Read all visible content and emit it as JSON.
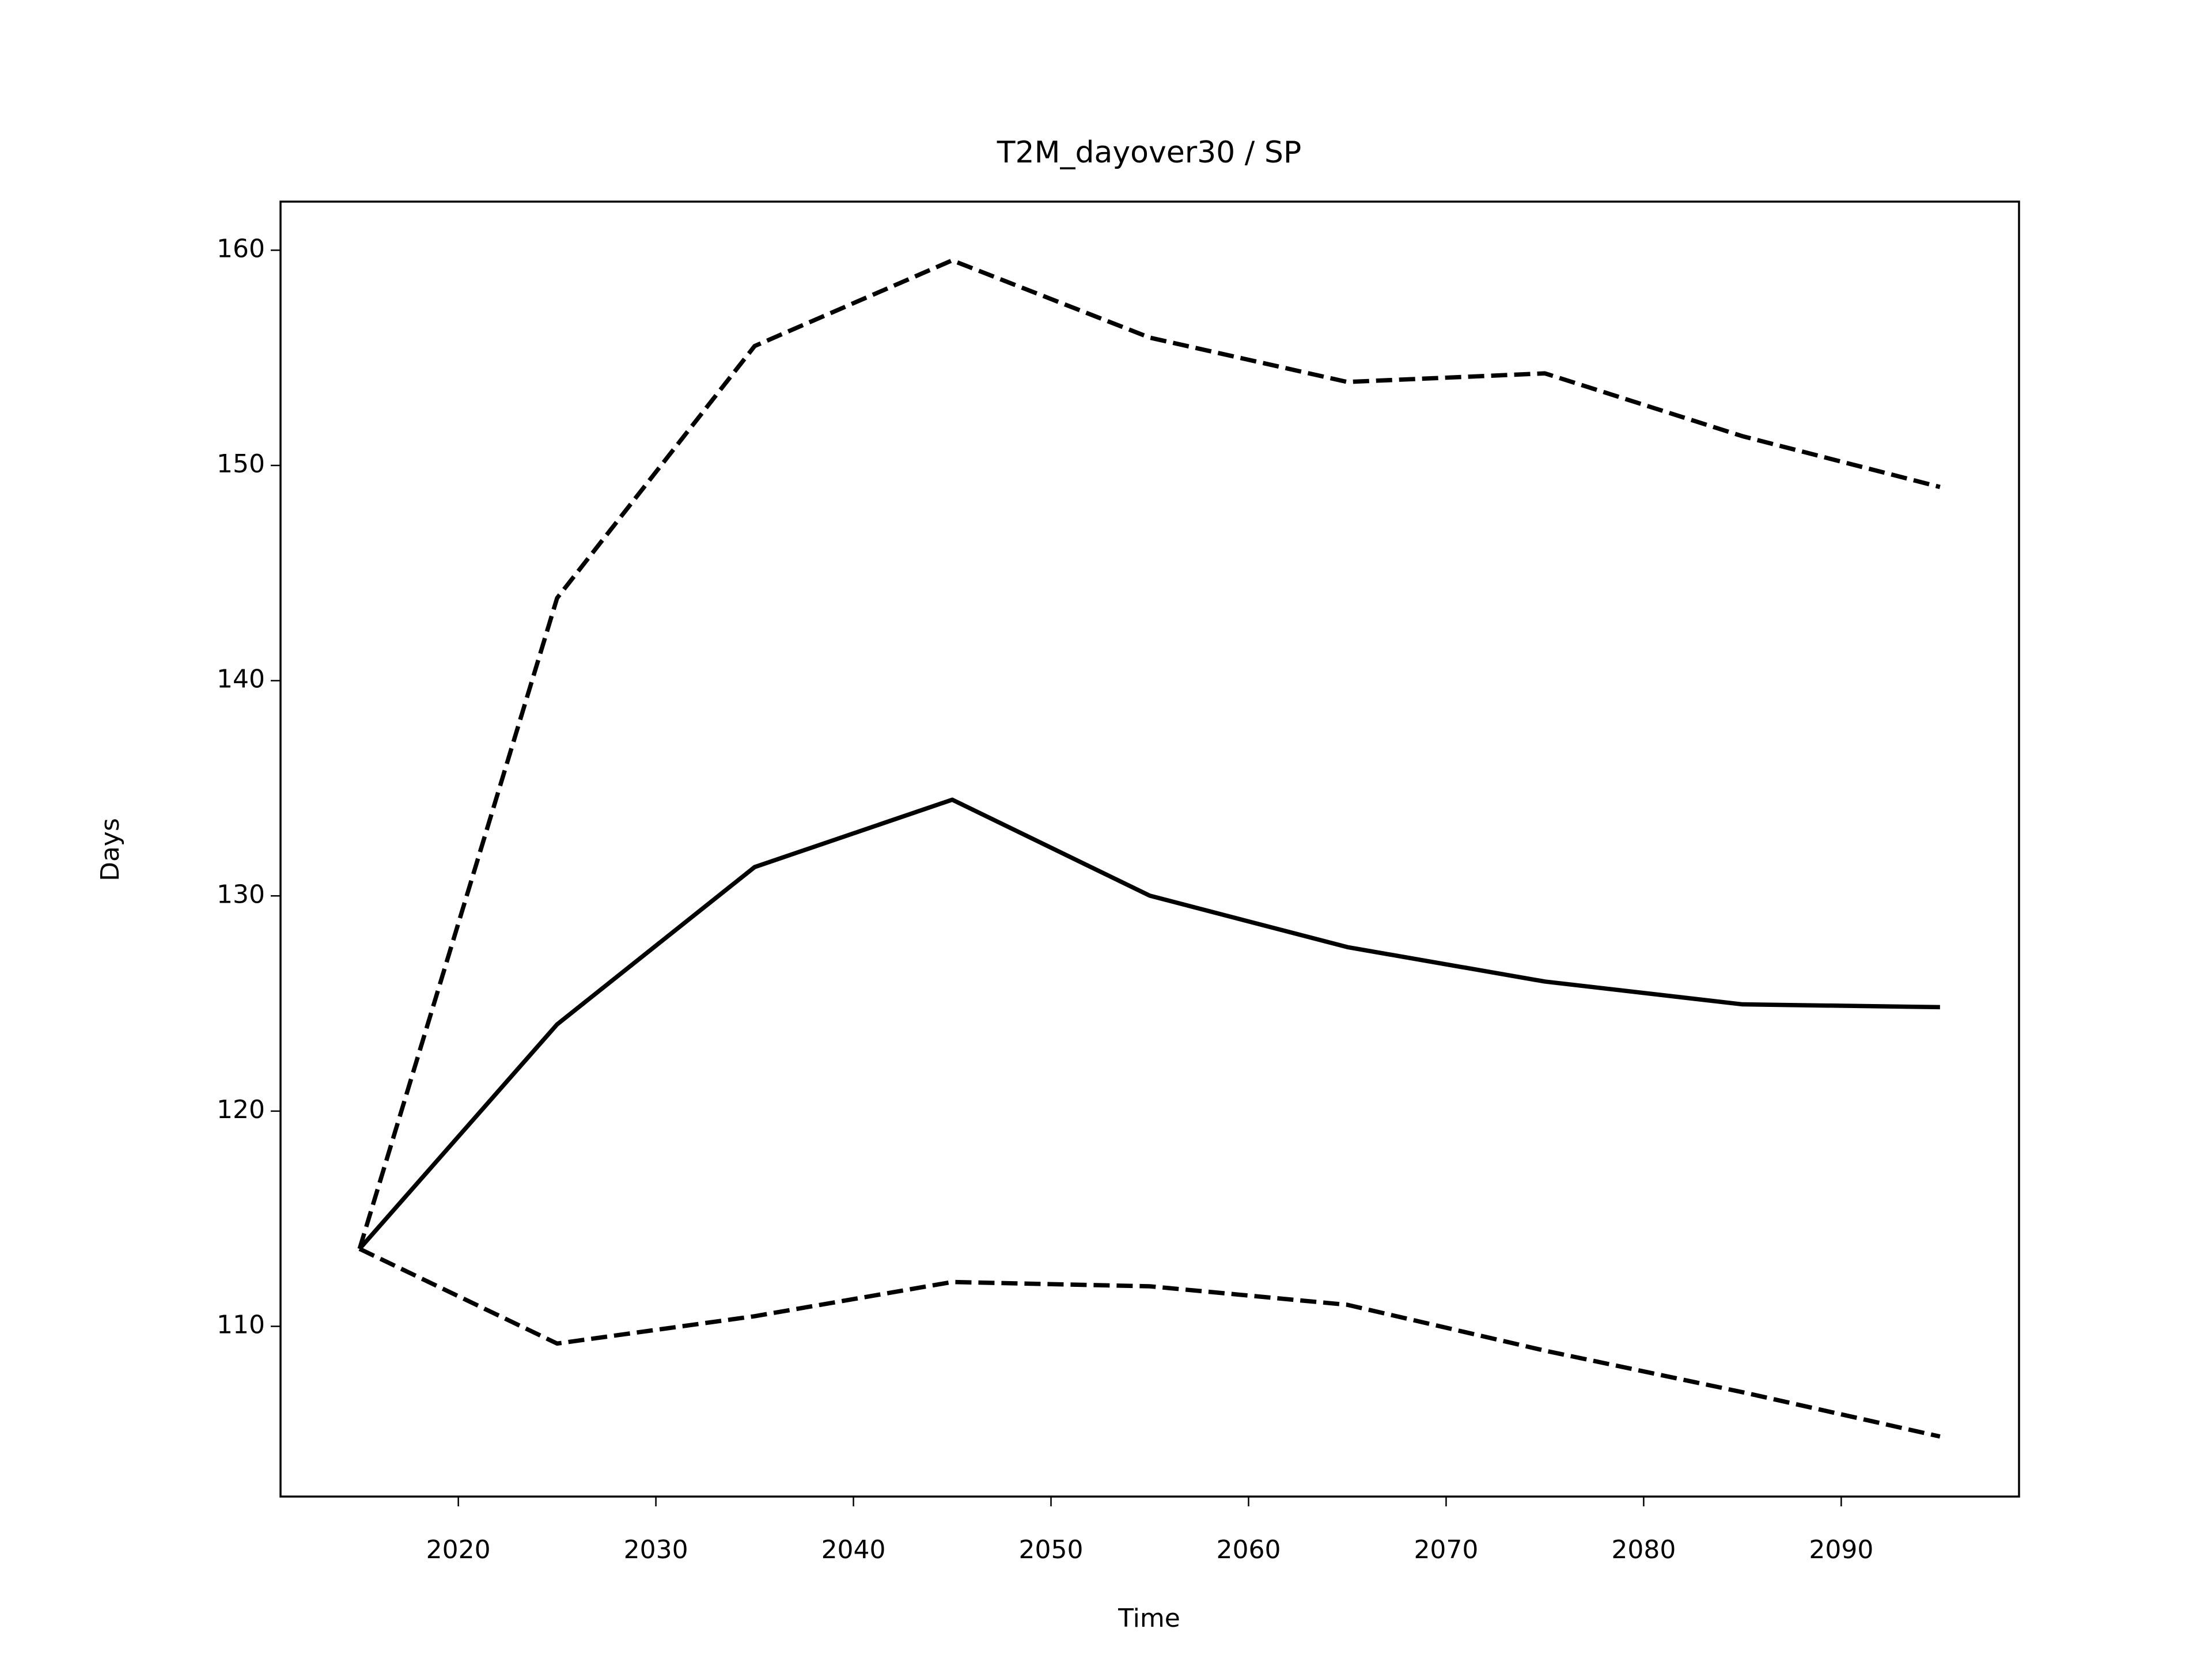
{
  "chart_data": {
    "type": "line",
    "title": "T2M_dayover30 / SP",
    "x_label": "Time",
    "y_label": "Days",
    "x": [
      2015,
      2025,
      2035,
      2045,
      2055,
      2065,
      2075,
      2085,
      2095
    ],
    "series": [
      {
        "color": "#000000",
        "style": "solid",
        "values": [
          113.6,
          124.03,
          131.34,
          134.47,
          130.01,
          127.62,
          126.02,
          124.96,
          124.83
        ]
      },
      {
        "color": "#000000",
        "style": "dashed",
        "values": [
          113.6,
          143.84,
          155.55,
          159.53,
          155.94,
          153.88,
          154.28,
          151.36,
          149.0
        ]
      },
      {
        "color": "#000000",
        "style": "dashed",
        "values": [
          113.6,
          109.2,
          110.47,
          112.06,
          111.86,
          111.0,
          108.87,
          106.94,
          104.88
        ]
      }
    ],
    "xlim": [
      2011,
      2099
    ],
    "xticks": [
      2020,
      2030,
      2040,
      2050,
      2060,
      2070,
      2080,
      2090
    ],
    "ylim": [
      102.09,
      162.26
    ],
    "yticks": [
      110,
      120,
      130,
      140,
      150,
      160
    ],
    "grid": false
  }
}
